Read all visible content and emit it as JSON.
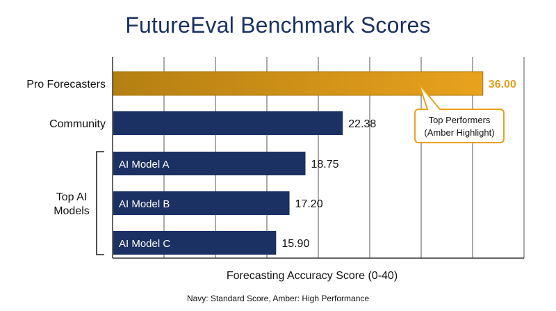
{
  "page": {
    "title": "FutureEval Benchmark Scores",
    "footnote": "Navy: Standard Score, Amber: High Performance"
  },
  "colors": {
    "navy": "#1b3163",
    "amber": "#e8a21d",
    "amber_dark": "#b47f12",
    "amber_text": "#e0a020",
    "grid": "#555555"
  },
  "chart_data": {
    "type": "bar",
    "orientation": "horizontal",
    "title": "FutureEval Benchmark Scores",
    "xlabel": "Forecasting Accuracy Score (0-40)",
    "ylabel": "",
    "xlim": [
      0,
      40
    ],
    "grid": true,
    "categories": [
      "Pro Forecasters",
      "Community",
      "AI Model A",
      "AI Model B",
      "AI Model C"
    ],
    "values": [
      36.0,
      22.38,
      18.75,
      17.2,
      15.9
    ],
    "value_labels": [
      "36.00",
      "22.38",
      "18.75",
      "17.20",
      "15.90"
    ],
    "highlight": [
      "Pro Forecasters"
    ],
    "group": {
      "label_lines": [
        "Top AI",
        "Models"
      ],
      "members": [
        "AI Model A",
        "AI Model B",
        "AI Model C"
      ]
    },
    "annotation": {
      "lines": [
        "Top Performers",
        "(Amber Highlight)"
      ],
      "target": "Pro Forecasters"
    }
  }
}
